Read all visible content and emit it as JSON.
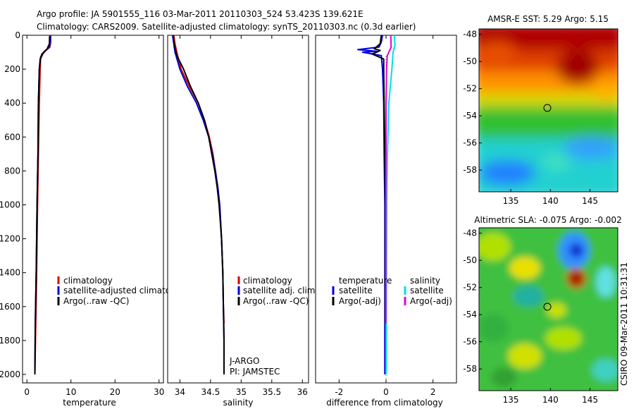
{
  "header": {
    "line1": "Argo profile: JA 5901555_116 03-Mar-2011 20110303_524 53.423S 139.621E",
    "line2": "Climatology: CARS2009. Satellite-adjusted climatology: synTS_20110303.nc (0.3d earlier)"
  },
  "colors": {
    "clim": "#e00000",
    "sat": "#0000e0",
    "argo": "#000000",
    "sal_sat": "#00e0e0",
    "sal_argo": "#e000e0"
  },
  "chart_data": [
    {
      "type": "line",
      "id": "temperature",
      "xlabel": "temperature",
      "xlim": [
        -1,
        31
      ],
      "ylim": [
        2050,
        0
      ],
      "xticks": [
        0,
        10,
        20,
        30
      ],
      "yticks": [
        0,
        200,
        400,
        600,
        800,
        1000,
        1200,
        1400,
        1600,
        1800,
        2000
      ],
      "legend": [
        "climatology",
        "satellite-adjusted climatology",
        "Argo(..raw -QC)"
      ],
      "series": [
        {
          "name": "climatology",
          "color": "clim",
          "points": [
            [
              5.4,
              0
            ],
            [
              5.4,
              40
            ],
            [
              5.2,
              70
            ],
            [
              4.3,
              90
            ],
            [
              3.6,
              110
            ],
            [
              3.1,
              140
            ],
            [
              3.0,
              200
            ],
            [
              2.8,
              400
            ],
            [
              2.6,
              700
            ],
            [
              2.4,
              1000
            ],
            [
              2.2,
              1400
            ],
            [
              2.0,
              1700
            ],
            [
              1.8,
              2000
            ]
          ]
        },
        {
          "name": "satellite-adjusted climatology",
          "color": "sat",
          "points": [
            [
              5.3,
              0
            ],
            [
              5.3,
              40
            ],
            [
              5.1,
              70
            ],
            [
              4.2,
              90
            ],
            [
              3.4,
              110
            ],
            [
              3.0,
              140
            ],
            [
              2.8,
              200
            ],
            [
              2.6,
              400
            ],
            [
              2.5,
              700
            ],
            [
              2.3,
              1000
            ],
            [
              2.1,
              1400
            ],
            [
              1.9,
              1700
            ],
            [
              1.8,
              2000
            ]
          ]
        },
        {
          "name": "Argo(..raw -QC)",
          "color": "argo",
          "points": [
            [
              5.15,
              5
            ],
            [
              5.1,
              50
            ],
            [
              4.6,
              80
            ],
            [
              3.8,
              100
            ],
            [
              3.1,
              130
            ],
            [
              2.8,
              200
            ],
            [
              2.6,
              400
            ],
            [
              2.5,
              700
            ],
            [
              2.3,
              1000
            ],
            [
              2.1,
              1400
            ],
            [
              1.9,
              1700
            ],
            [
              1.8,
              2000
            ]
          ]
        }
      ]
    },
    {
      "type": "line",
      "id": "salinity",
      "xlabel": "salinity",
      "xlim": [
        33.8,
        36.1
      ],
      "ylim": [
        2050,
        0
      ],
      "xticks": [
        34,
        34.5,
        35,
        35.5,
        36
      ],
      "legend": [
        "climatology",
        "satellite adj. clim.",
        "Argo(..raw -QC)"
      ],
      "annotation": [
        "J-ARGO",
        "PI: JAMSTEC"
      ],
      "series": [
        {
          "name": "climatology",
          "color": "clim",
          "points": [
            [
              33.9,
              0
            ],
            [
              33.92,
              50
            ],
            [
              33.95,
              100
            ],
            [
              34.02,
              200
            ],
            [
              34.15,
              300
            ],
            [
              34.3,
              400
            ],
            [
              34.4,
              500
            ],
            [
              34.48,
              600
            ],
            [
              34.54,
              700
            ],
            [
              34.58,
              800
            ],
            [
              34.62,
              900
            ],
            [
              34.65,
              1000
            ],
            [
              34.68,
              1200
            ],
            [
              34.7,
              1400
            ],
            [
              34.71,
              1600
            ],
            [
              34.72,
              1700
            ]
          ]
        },
        {
          "name": "satellite adj. clim.",
          "color": "sat",
          "points": [
            [
              33.88,
              0
            ],
            [
              33.9,
              50
            ],
            [
              33.92,
              100
            ],
            [
              34.0,
              200
            ],
            [
              34.12,
              300
            ],
            [
              34.27,
              400
            ],
            [
              34.38,
              500
            ],
            [
              34.47,
              600
            ],
            [
              34.53,
              700
            ],
            [
              34.58,
              800
            ],
            [
              34.62,
              900
            ],
            [
              34.65,
              1000
            ],
            [
              34.68,
              1200
            ],
            [
              34.7,
              1400
            ],
            [
              34.71,
              1600
            ],
            [
              34.72,
              1800
            ],
            [
              34.72,
              2000
            ]
          ]
        },
        {
          "name": "Argo(..raw -QC)",
          "color": "argo",
          "points": [
            [
              33.89,
              0
            ],
            [
              33.91,
              60
            ],
            [
              33.95,
              120
            ],
            [
              34.06,
              200
            ],
            [
              34.17,
              300
            ],
            [
              34.3,
              400
            ],
            [
              34.4,
              500
            ],
            [
              34.47,
              600
            ],
            [
              34.52,
              700
            ],
            [
              34.57,
              800
            ],
            [
              34.61,
              900
            ],
            [
              34.64,
              1000
            ],
            [
              34.68,
              1200
            ],
            [
              34.7,
              1400
            ],
            [
              34.71,
              1600
            ],
            [
              34.72,
              1800
            ],
            [
              34.72,
              2000
            ]
          ]
        }
      ]
    },
    {
      "type": "line",
      "id": "difference",
      "xlabel": "difference from climatology",
      "xlim": [
        -3,
        3
      ],
      "ylim": [
        2050,
        0
      ],
      "xticks": [
        -2,
        0,
        2
      ],
      "legend_titles": [
        "temperature",
        "salinity"
      ],
      "legend_temp": [
        "satellite",
        "Argo(-adj)"
      ],
      "legend_sal": [
        "satellite",
        "Argo(-adj)"
      ],
      "series": [
        {
          "name": "temperature satellite",
          "color": "sat",
          "points": [
            [
              -0.15,
              0
            ],
            [
              -0.2,
              40
            ],
            [
              -0.3,
              70
            ],
            [
              -1.2,
              85
            ],
            [
              -0.4,
              95
            ],
            [
              -1.0,
              100
            ],
            [
              -0.2,
              120
            ],
            [
              -0.15,
              200
            ],
            [
              -0.1,
              400
            ],
            [
              -0.08,
              700
            ],
            [
              -0.05,
              1000
            ],
            [
              -0.05,
              1400
            ],
            [
              -0.05,
              1700
            ],
            [
              -0.05,
              2000
            ]
          ]
        },
        {
          "name": "temperature Argo(-adj)",
          "color": "argo",
          "points": [
            [
              -0.2,
              0
            ],
            [
              -0.25,
              50
            ],
            [
              -0.5,
              80
            ],
            [
              -0.25,
              90
            ],
            [
              -0.4,
              100
            ],
            [
              -0.6,
              110
            ],
            [
              -0.1,
              140
            ],
            [
              -0.1,
              200
            ],
            [
              -0.08,
              400
            ],
            [
              -0.05,
              700
            ],
            [
              -0.03,
              1000
            ],
            [
              -0.03,
              1400
            ],
            [
              -0.03,
              1700
            ]
          ]
        },
        {
          "name": "salinity satellite",
          "color": "sal_sat",
          "points": [
            [
              0.35,
              0
            ],
            [
              0.38,
              60
            ],
            [
              0.3,
              100
            ],
            [
              0.25,
              200
            ],
            [
              0.12,
              400
            ],
            [
              0.06,
              700
            ],
            [
              0.03,
              1000
            ],
            [
              0.02,
              1400
            ],
            [
              0.01,
              2000
            ]
          ]
        },
        {
          "name": "salinity Argo(-adj)",
          "color": "sal_argo",
          "points": [
            [
              0.2,
              0
            ],
            [
              0.22,
              70
            ],
            [
              0.05,
              120
            ],
            [
              0.02,
              200
            ],
            [
              0.0,
              400
            ],
            [
              0.0,
              700
            ],
            [
              -0.01,
              1000
            ],
            [
              -0.01,
              1400
            ],
            [
              -0.01,
              1700
            ]
          ]
        }
      ]
    },
    {
      "type": "heatmap",
      "id": "sst-map",
      "title": "AMSR-E SST: 5.29 Argo: 5.15",
      "xlim": [
        131,
        148.5
      ],
      "ylim": [
        -59.6,
        -47.6
      ],
      "xticks": [
        135,
        140,
        145
      ],
      "yticks": [
        -48,
        -50,
        -52,
        -54,
        -56,
        -58
      ],
      "marker": [
        139.62,
        -53.42
      ]
    },
    {
      "type": "heatmap",
      "id": "sla-map",
      "title": "Altimetric SLA: -0.075 Argo: -0.002",
      "xlim": [
        131,
        148.5
      ],
      "ylim": [
        -59.6,
        -47.6
      ],
      "xticks": [
        135,
        140,
        145
      ],
      "yticks": [
        -48,
        -50,
        -52,
        -54,
        -56,
        -58
      ],
      "marker": [
        139.62,
        -53.42
      ]
    }
  ],
  "footer": {
    "stamp": "CSIRO 09-Mar-2011 10:31:31"
  }
}
